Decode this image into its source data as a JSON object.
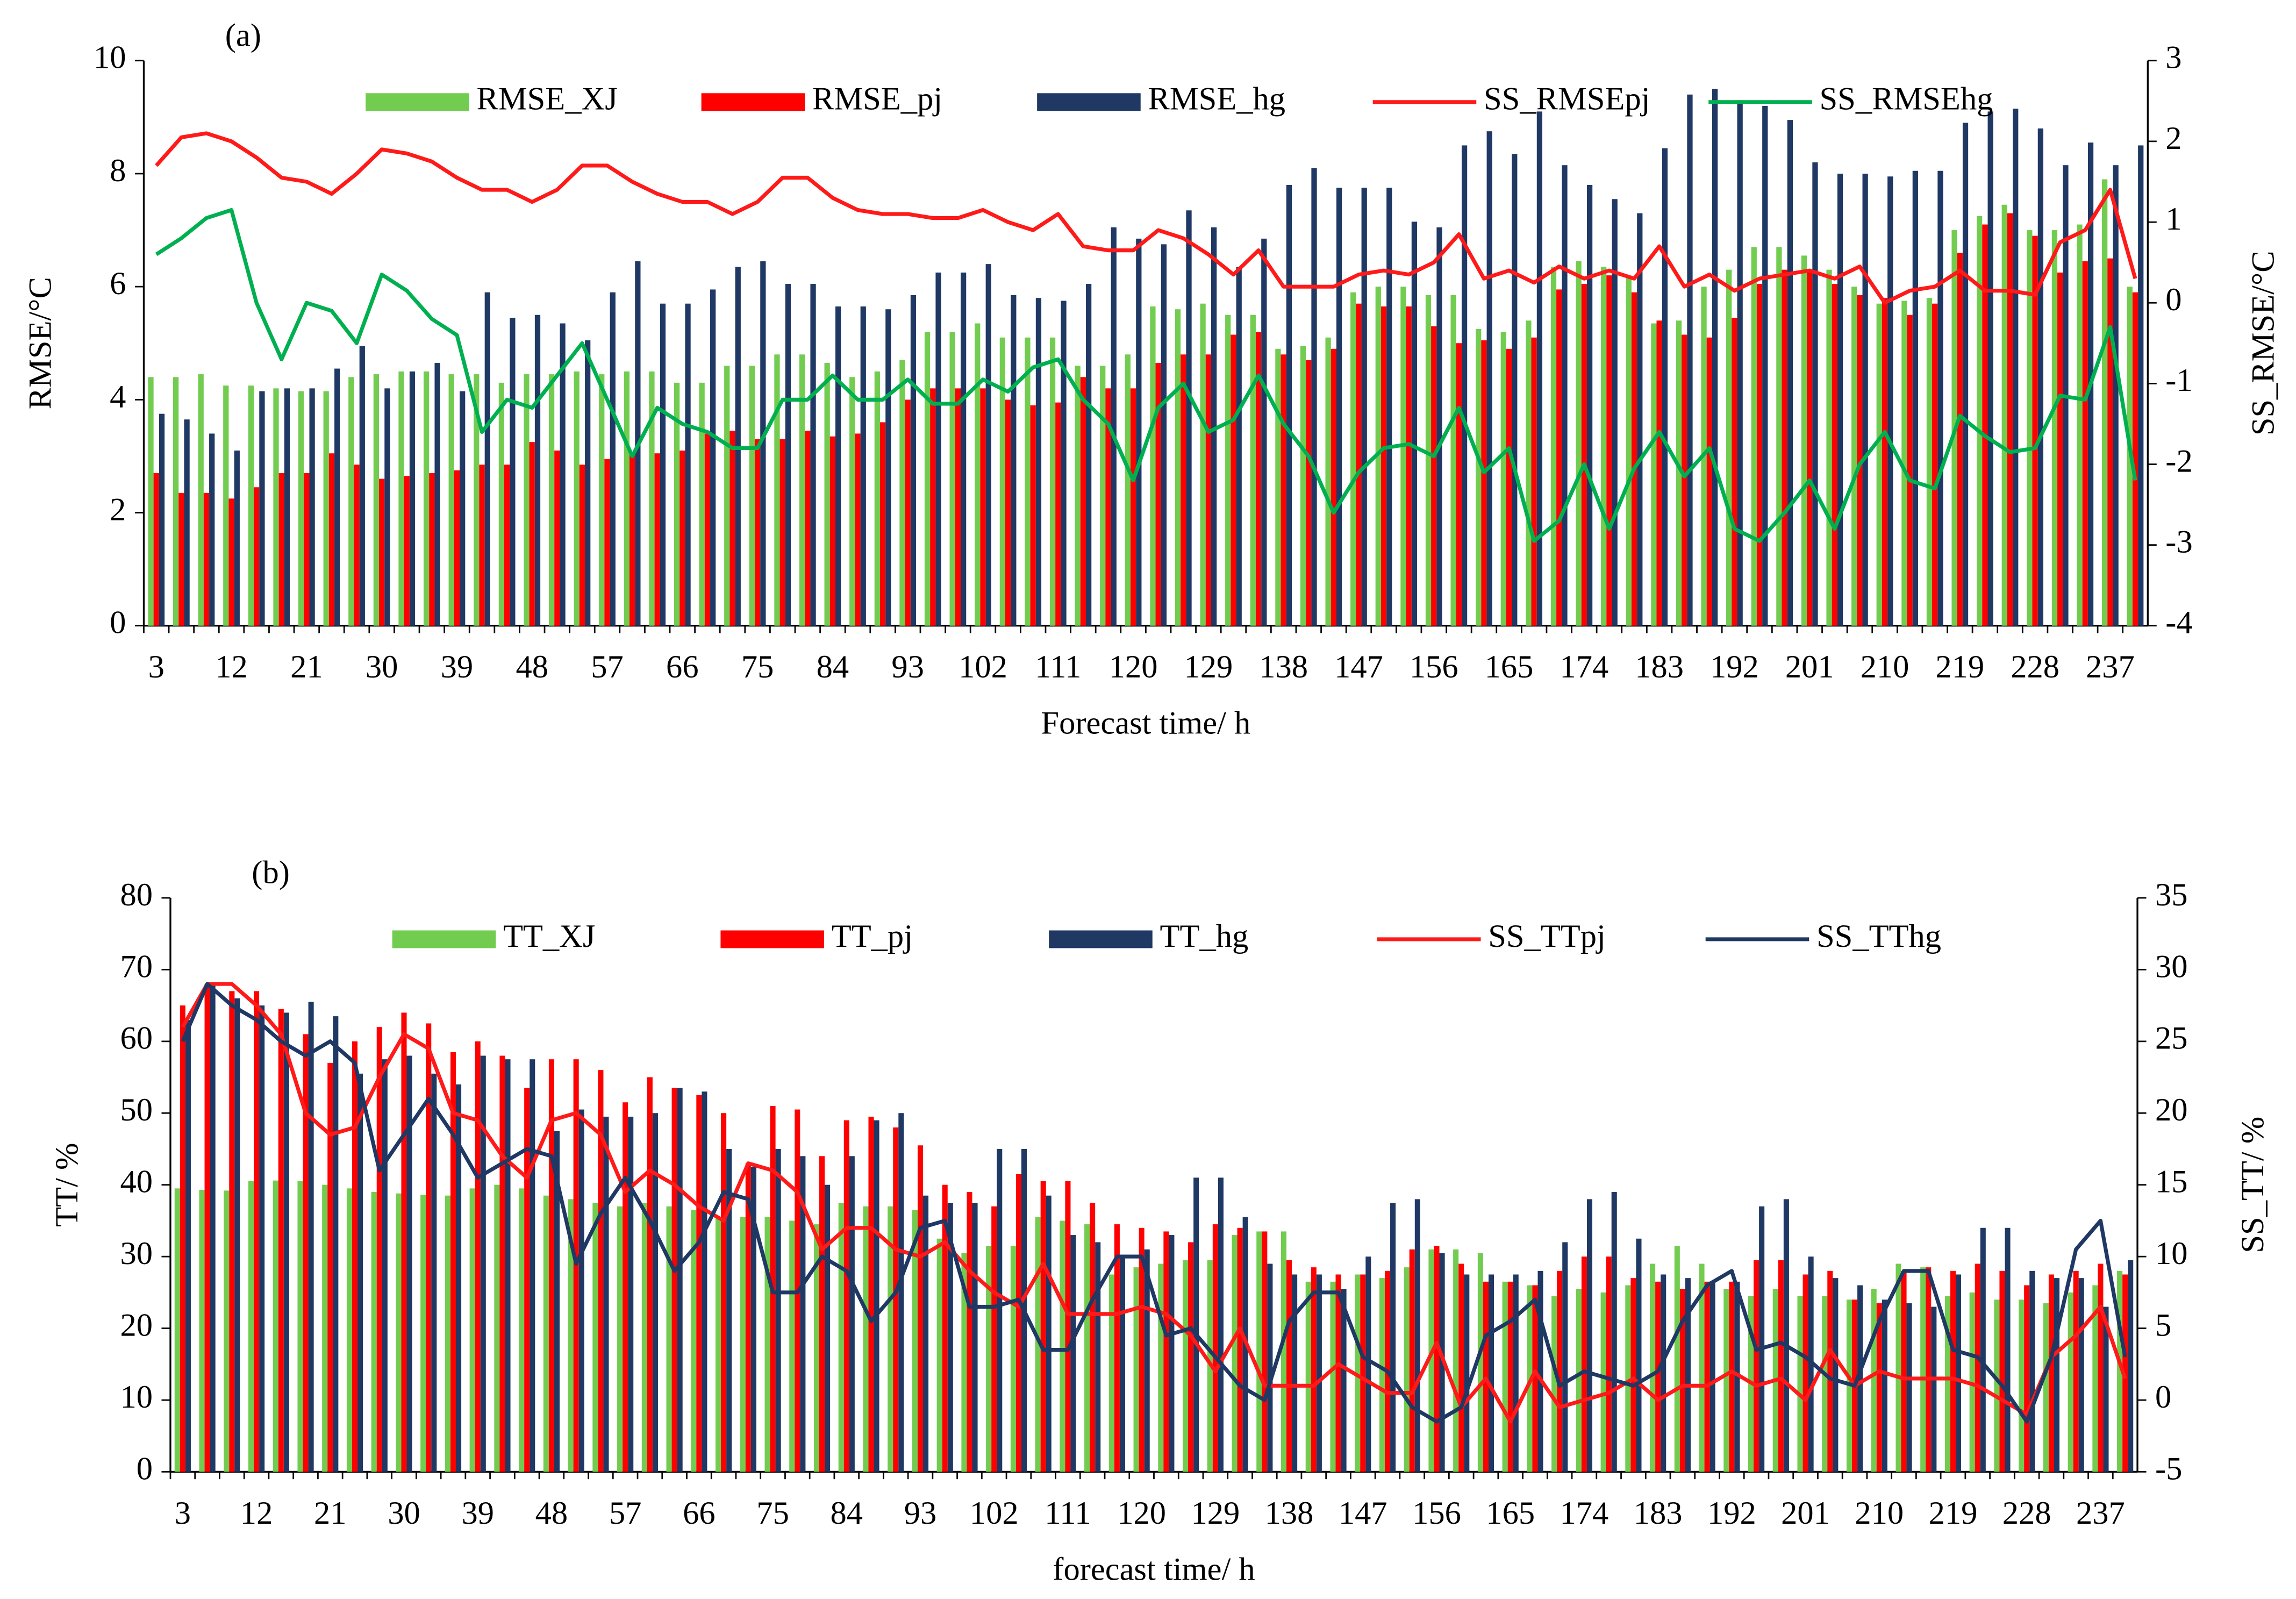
{
  "chart_data": [
    {
      "type": "bar_line",
      "panel_label": "(a)",
      "y_label": "RMSE/°C",
      "y2_label": "SS_RMSE/°C",
      "x_label": "Forecast time/ h",
      "categories": [
        "3",
        null,
        null,
        "12",
        null,
        null,
        "21",
        null,
        null,
        "30",
        null,
        null,
        "39",
        null,
        null,
        "48",
        null,
        null,
        "57",
        null,
        null,
        "66",
        null,
        null,
        "75",
        null,
        null,
        "84",
        null,
        null,
        "93",
        null,
        null,
        "102",
        null,
        null,
        "111",
        null,
        null,
        "120",
        null,
        null,
        "129",
        null,
        null,
        "138",
        null,
        null,
        "147",
        null,
        null,
        "156",
        null,
        null,
        "165",
        null,
        null,
        "174",
        null,
        null,
        "183",
        null,
        null,
        "192",
        null,
        null,
        "201",
        null,
        null,
        "210",
        null,
        null,
        "219",
        null,
        null,
        "228",
        null,
        null,
        "237",
        null
      ],
      "ylim": [
        0,
        10
      ],
      "yticks": [
        0,
        2,
        4,
        6,
        8,
        10
      ],
      "y2lim": [
        -4,
        3
      ],
      "y2ticks": [
        -4,
        -3,
        -2,
        -1,
        0,
        1,
        2,
        3
      ],
      "legend": "top",
      "series": [
        {
          "name": "RMSE_XJ",
          "kind": "bar",
          "color": "#72cc50",
          "values": [
            4.4,
            4.4,
            4.45,
            4.25,
            4.25,
            4.2,
            4.15,
            4.15,
            4.4,
            4.45,
            4.5,
            4.5,
            4.45,
            4.45,
            4.3,
            4.45,
            4.45,
            4.5,
            4.45,
            4.5,
            4.5,
            4.3,
            4.3,
            4.6,
            4.6,
            4.8,
            4.8,
            4.65,
            4.4,
            4.5,
            4.7,
            5.2,
            5.2,
            5.35,
            5.1,
            5.1,
            5.1,
            4.6,
            4.6,
            4.8,
            5.65,
            5.6,
            5.7,
            5.5,
            5.5,
            4.9,
            4.95,
            5.1,
            5.9,
            6.0,
            6.0,
            5.85,
            5.85,
            5.25,
            5.2,
            5.4,
            6.35,
            6.45,
            6.35,
            6.15,
            5.35,
            5.4,
            6.0,
            6.3,
            6.7,
            6.7,
            6.55,
            6.3,
            6.0,
            5.7,
            5.75,
            5.8,
            7.0,
            7.25,
            7.45,
            7.0,
            7.0,
            7.1,
            7.9,
            6.0
          ]
        },
        {
          "name": "RMSE_pj",
          "kind": "bar",
          "color": "#ff0000",
          "values": [
            2.7,
            2.35,
            2.35,
            2.25,
            2.45,
            2.7,
            2.7,
            3.05,
            2.85,
            2.6,
            2.65,
            2.7,
            2.75,
            2.85,
            2.85,
            3.25,
            3.1,
            2.85,
            2.95,
            3.05,
            3.05,
            3.1,
            3.4,
            3.45,
            3.3,
            3.3,
            3.45,
            3.35,
            3.4,
            3.6,
            4.0,
            4.2,
            4.2,
            4.2,
            4.0,
            3.9,
            3.95,
            4.4,
            4.2,
            4.2,
            4.65,
            4.8,
            4.8,
            5.15,
            5.2,
            4.8,
            4.7,
            4.9,
            5.7,
            5.65,
            5.65,
            5.3,
            5.0,
            5.05,
            4.9,
            5.1,
            5.95,
            6.05,
            6.2,
            5.9,
            5.4,
            5.15,
            5.1,
            5.45,
            6.05,
            6.3,
            6.3,
            6.05,
            5.85,
            5.8,
            5.5,
            5.7,
            6.6,
            7.1,
            7.3,
            6.9,
            6.25,
            6.45,
            6.5,
            5.9
          ]
        },
        {
          "name": "RMSE_hg",
          "kind": "bar",
          "color": "#1f3864",
          "values": [
            3.75,
            3.65,
            3.4,
            3.1,
            4.15,
            4.2,
            4.2,
            4.55,
            4.95,
            4.2,
            4.5,
            4.65,
            4.15,
            5.9,
            5.45,
            5.5,
            5.35,
            5.05,
            5.9,
            6.45,
            5.7,
            5.7,
            5.95,
            6.35,
            6.45,
            6.05,
            6.05,
            5.65,
            5.65,
            5.6,
            5.85,
            6.25,
            6.25,
            6.4,
            5.85,
            5.8,
            5.75,
            6.05,
            7.05,
            6.85,
            6.75,
            7.35,
            7.05,
            6.35,
            6.85,
            7.8,
            8.1,
            7.75,
            7.75,
            7.75,
            7.15,
            7.05,
            8.5,
            8.75,
            8.35,
            9.1,
            8.15,
            7.8,
            7.55,
            7.3,
            8.45,
            9.4,
            9.5,
            9.3,
            9.2,
            8.95,
            8.2,
            8.0,
            8.0,
            7.95,
            8.05,
            8.05,
            8.9,
            9.1,
            9.15,
            8.8,
            8.15,
            8.55,
            8.15,
            8.5
          ]
        },
        {
          "name": "SS_RMSEpj",
          "kind": "line",
          "axis": "y2",
          "color": "#ff1a1a",
          "values": [
            1.7,
            2.05,
            2.1,
            2.0,
            1.8,
            1.55,
            1.5,
            1.35,
            1.6,
            1.9,
            1.85,
            1.75,
            1.55,
            1.4,
            1.4,
            1.25,
            1.4,
            1.7,
            1.7,
            1.5,
            1.35,
            1.25,
            1.25,
            1.1,
            1.25,
            1.55,
            1.55,
            1.3,
            1.15,
            1.1,
            1.1,
            1.05,
            1.05,
            1.15,
            1.0,
            0.9,
            1.1,
            0.7,
            0.65,
            0.65,
            0.9,
            0.8,
            0.6,
            0.35,
            0.65,
            0.2,
            0.2,
            0.2,
            0.35,
            0.4,
            0.35,
            0.5,
            0.85,
            0.3,
            0.4,
            0.25,
            0.45,
            0.3,
            0.4,
            0.3,
            0.7,
            0.2,
            0.35,
            0.15,
            0.3,
            0.35,
            0.4,
            0.3,
            0.45,
            0.0,
            0.15,
            0.2,
            0.4,
            0.15,
            0.15,
            0.1,
            0.75,
            0.9,
            1.4,
            0.3
          ]
        },
        {
          "name": "SS_RMSEhg",
          "kind": "line",
          "axis": "y2",
          "color": "#00b050",
          "values": [
            0.6,
            0.8,
            1.05,
            1.15,
            0.0,
            -0.7,
            0.0,
            -0.1,
            -0.5,
            0.35,
            0.15,
            -0.2,
            -0.4,
            -1.6,
            -1.2,
            -1.3,
            -0.9,
            -0.5,
            -1.2,
            -1.9,
            -1.3,
            -1.5,
            -1.6,
            -1.8,
            -1.8,
            -1.2,
            -1.2,
            -0.9,
            -1.2,
            -1.2,
            -0.95,
            -1.25,
            -1.25,
            -0.95,
            -1.1,
            -0.8,
            -0.7,
            -1.2,
            -1.5,
            -2.2,
            -1.3,
            -1.0,
            -1.6,
            -1.45,
            -0.9,
            -1.5,
            -1.9,
            -2.6,
            -2.1,
            -1.8,
            -1.75,
            -1.9,
            -1.3,
            -2.1,
            -1.8,
            -2.95,
            -2.7,
            -2.0,
            -2.8,
            -2.05,
            -1.6,
            -2.15,
            -1.8,
            -2.8,
            -2.95,
            -2.6,
            -2.2,
            -2.8,
            -2.0,
            -1.6,
            -2.2,
            -2.3,
            -1.4,
            -1.65,
            -1.85,
            -1.8,
            -1.15,
            -1.2,
            -0.3,
            -2.2
          ]
        }
      ]
    },
    {
      "type": "bar_line",
      "panel_label": "(b)",
      "y_label": "TT/ %",
      "y2_label": "SS_TT/ %",
      "x_label": "forecast time/ h",
      "categories": [
        "3",
        null,
        null,
        "12",
        null,
        null,
        "21",
        null,
        null,
        "30",
        null,
        null,
        "39",
        null,
        null,
        "48",
        null,
        null,
        "57",
        null,
        null,
        "66",
        null,
        null,
        "75",
        null,
        null,
        "84",
        null,
        null,
        "93",
        null,
        null,
        "102",
        null,
        null,
        "111",
        null,
        null,
        "120",
        null,
        null,
        "129",
        null,
        null,
        "138",
        null,
        null,
        "147",
        null,
        null,
        "156",
        null,
        null,
        "165",
        null,
        null,
        "174",
        null,
        null,
        "183",
        null,
        null,
        "192",
        null,
        null,
        "201",
        null,
        null,
        "210",
        null,
        null,
        "219",
        null,
        null,
        "228",
        null,
        null,
        "237",
        null
      ],
      "ylim": [
        0,
        80
      ],
      "yticks": [
        0,
        10,
        20,
        30,
        40,
        50,
        60,
        70,
        80
      ],
      "y2lim": [
        -5,
        35
      ],
      "y2ticks": [
        -5,
        0,
        5,
        10,
        15,
        20,
        25,
        30,
        35
      ],
      "legend": "top",
      "series": [
        {
          "name": "TT_XJ",
          "kind": "bar",
          "color": "#72cc50",
          "values": [
            39.5,
            39.3,
            39.2,
            40.5,
            40.6,
            40.5,
            40.0,
            39.5,
            39.0,
            38.8,
            38.6,
            38.5,
            39.5,
            40.0,
            39.5,
            38.5,
            38.0,
            37.5,
            37.0,
            37.5,
            37.0,
            36.5,
            35.5,
            35.5,
            35.5,
            35.0,
            34.5,
            37.5,
            37.0,
            37.0,
            36.5,
            32.5,
            30.5,
            31.5,
            31.5,
            35.5,
            35.0,
            34.5,
            27.5,
            28.5,
            29.0,
            29.5,
            29.5,
            33.0,
            33.5,
            33.5,
            26.5,
            26.5,
            27.5,
            27.0,
            28.5,
            31.0,
            31.0,
            30.5,
            26.5,
            26.0,
            24.5,
            25.5,
            25.0,
            26.0,
            29.0,
            31.5,
            29.0,
            25.5,
            24.5,
            25.5,
            24.5,
            24.5,
            24.0,
            25.5,
            29.0,
            28.5,
            24.5,
            25.0,
            24.0,
            24.0,
            23.5,
            25.0,
            26.0,
            28.0
          ]
        },
        {
          "name": "TT_pj",
          "kind": "bar",
          "color": "#ff0000",
          "values": [
            65,
            68,
            67,
            67,
            64.5,
            61,
            57,
            60,
            62,
            64,
            62.5,
            58.5,
            60,
            58,
            53.5,
            57.5,
            57.5,
            56,
            51.5,
            55,
            53.5,
            52.5,
            50,
            43,
            51,
            50.5,
            44,
            49,
            49.5,
            48,
            45.5,
            40,
            39,
            37,
            41.5,
            40.5,
            40.5,
            37.5,
            34.5,
            34,
            33.5,
            32,
            34.5,
            34,
            33.5,
            29.5,
            28.5,
            27.5,
            27.5,
            28,
            31,
            31.5,
            29,
            26.5,
            26.5,
            26,
            28,
            30,
            30,
            27,
            26.5,
            25.5,
            26.5,
            26.5,
            29.5,
            29.5,
            27.5,
            28,
            24,
            23.5,
            28,
            28.5,
            28,
            29,
            28,
            26,
            27.5,
            28,
            29,
            27.5
          ]
        },
        {
          "name": "TT_hg",
          "kind": "bar",
          "color": "#1f3864",
          "values": [
            63,
            68,
            66,
            65,
            64,
            65.5,
            63.5,
            55.5,
            57.5,
            58,
            55.5,
            54,
            58,
            57.5,
            57.5,
            47.5,
            50.5,
            49.5,
            49.5,
            50,
            53.5,
            53,
            45,
            42.5,
            45,
            44,
            40,
            44,
            49,
            50,
            38.5,
            37.5,
            37.5,
            45,
            45,
            38.5,
            33,
            32,
            30,
            31,
            33,
            41,
            41,
            35.5,
            29,
            27.5,
            27.5,
            25.5,
            30,
            37.5,
            38,
            30.5,
            27.5,
            27.5,
            27.5,
            28,
            32,
            38,
            39,
            32.5,
            27.5,
            27,
            26.5,
            26.5,
            37,
            38,
            30,
            27,
            26,
            24,
            23.5,
            23,
            27.5,
            34,
            34,
            28,
            27,
            27,
            23,
            29.5
          ]
        },
        {
          "name": "SS_TTpj",
          "kind": "line",
          "axis": "y2",
          "color": "#ff1a1a",
          "values": [
            26,
            29,
            29,
            27.5,
            25.5,
            20,
            18.5,
            19,
            22.5,
            25.5,
            24.5,
            20,
            19.5,
            17,
            15.5,
            19.5,
            20,
            18.5,
            14.5,
            16,
            15,
            13.5,
            12.5,
            16.5,
            16,
            14.5,
            10.5,
            12,
            12,
            10.5,
            10,
            11,
            9,
            7.5,
            6.5,
            9.5,
            6,
            6,
            6,
            6.5,
            6,
            4.5,
            2,
            5,
            1,
            1,
            1,
            2.5,
            1.5,
            0.5,
            0.5,
            4,
            -0.5,
            1.5,
            -1.5,
            2,
            -0.5,
            0,
            0.5,
            1.5,
            0,
            1,
            1,
            2,
            1,
            1.5,
            0,
            3.5,
            1,
            2,
            1.5,
            1.5,
            1.5,
            1,
            0,
            -1,
            3,
            4.5,
            6.5,
            1.5
          ]
        },
        {
          "name": "SS_TThg",
          "kind": "line",
          "axis": "y2",
          "color": "#1f3864",
          "values": [
            25,
            29,
            27.5,
            26.5,
            25,
            24,
            25,
            23.5,
            16,
            18.5,
            21,
            18.5,
            15.5,
            16.5,
            17.5,
            17,
            9.5,
            13,
            15.5,
            12.5,
            9,
            11,
            14.5,
            14,
            7.5,
            7.5,
            10,
            9,
            5.5,
            7.5,
            12,
            12.5,
            6.5,
            6.5,
            7,
            3.5,
            3.5,
            7,
            10,
            10,
            4.5,
            5,
            3,
            1,
            0,
            5.5,
            7.5,
            7.5,
            3,
            2,
            -0.5,
            -1.5,
            -0.5,
            4.5,
            5.5,
            7,
            1,
            2,
            1.5,
            1,
            2,
            5.5,
            8,
            9,
            3.5,
            4,
            3,
            1.5,
            1,
            5.5,
            9,
            9,
            3.5,
            3,
            1,
            -1.5,
            3,
            10.5,
            12.5,
            3
          ]
        }
      ]
    }
  ]
}
